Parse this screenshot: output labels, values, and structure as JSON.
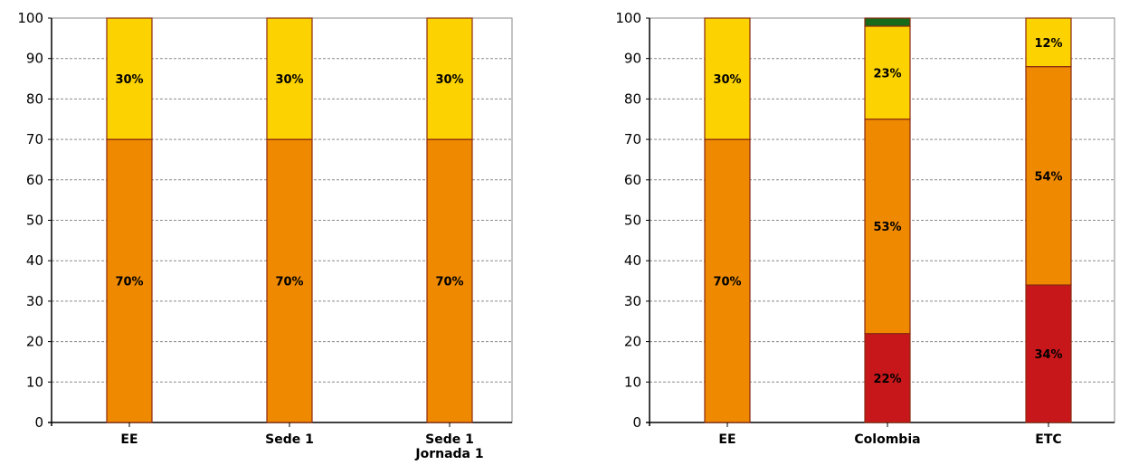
{
  "colors": {
    "red": "#c8171a",
    "orange": "#ef8a00",
    "yellow": "#fcd200",
    "green": "#166b1a",
    "bar_edge": "#8a2a12",
    "grid": "#8a8a8a",
    "axis": "#000000"
  },
  "chart_data": [
    {
      "type": "bar",
      "stacked": true,
      "ylim": [
        0,
        100
      ],
      "yticks": [
        0,
        10,
        20,
        30,
        40,
        50,
        60,
        70,
        80,
        90,
        100
      ],
      "grid": true,
      "categories": [
        [
          "EE"
        ],
        [
          "Sede 1"
        ],
        [
          "Sede 1",
          "Jornada 1"
        ]
      ],
      "series": [
        {
          "color_key": "red",
          "values": [
            0,
            0,
            0
          ],
          "labels": [
            "",
            "",
            ""
          ]
        },
        {
          "color_key": "orange",
          "values": [
            70,
            70,
            70
          ],
          "labels": [
            "70%",
            "70%",
            "70%"
          ]
        },
        {
          "color_key": "yellow",
          "values": [
            30,
            30,
            30
          ],
          "labels": [
            "30%",
            "30%",
            "30%"
          ]
        },
        {
          "color_key": "green",
          "values": [
            0,
            0,
            0
          ],
          "labels": [
            "",
            "",
            ""
          ]
        }
      ]
    },
    {
      "type": "bar",
      "stacked": true,
      "ylim": [
        0,
        100
      ],
      "yticks": [
        0,
        10,
        20,
        30,
        40,
        50,
        60,
        70,
        80,
        90,
        100
      ],
      "grid": true,
      "categories": [
        [
          "EE"
        ],
        [
          "Colombia"
        ],
        [
          "ETC"
        ]
      ],
      "series": [
        {
          "color_key": "red",
          "values": [
            0,
            22,
            34
          ],
          "labels": [
            "",
            "22%",
            "34%"
          ]
        },
        {
          "color_key": "orange",
          "values": [
            70,
            53,
            54
          ],
          "labels": [
            "70%",
            "53%",
            "54%"
          ]
        },
        {
          "color_key": "yellow",
          "values": [
            30,
            23,
            12
          ],
          "labels": [
            "30%",
            "23%",
            "12%"
          ]
        },
        {
          "color_key": "green",
          "values": [
            0,
            2,
            0
          ],
          "labels": [
            "",
            "",
            ""
          ]
        }
      ]
    }
  ]
}
